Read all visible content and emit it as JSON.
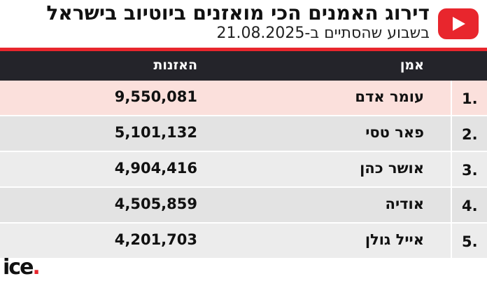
{
  "header": {
    "title": "דירוג האמנים הכי מואזנים ביוטיוב בישראל",
    "subtitle": "בשבוע שהסתיים ב-21.08.2025"
  },
  "table": {
    "col_artist": "אמן",
    "col_listens": "האזנות"
  },
  "chart_data": {
    "type": "table",
    "title": "דירוג האמנים הכי מואזנים ביוטיוב בישראל",
    "subtitle": "בשבוע שהסתיים ב-21.08.2025",
    "columns": [
      "אמן",
      "האזנות"
    ],
    "rows": [
      {
        "rank": "1.",
        "artist": "עומר אדם",
        "listens": "9,550,081"
      },
      {
        "rank": "2.",
        "artist": "פאר טסי",
        "listens": "5,101,132"
      },
      {
        "rank": "3.",
        "artist": "אושר כהן",
        "listens": "4,904,416"
      },
      {
        "rank": "4.",
        "artist": "אודיה",
        "listens": "4,505,859"
      },
      {
        "rank": "5.",
        "artist": "אייל גולן",
        "listens": "4,201,703"
      }
    ]
  },
  "logo": {
    "text": "ice",
    "dot": "."
  },
  "colors": {
    "accent": "#e8262d",
    "header_bg": "#24242a",
    "highlight_row": "#fbe0dc"
  },
  "icons": {
    "youtube": "youtube-play-icon"
  }
}
